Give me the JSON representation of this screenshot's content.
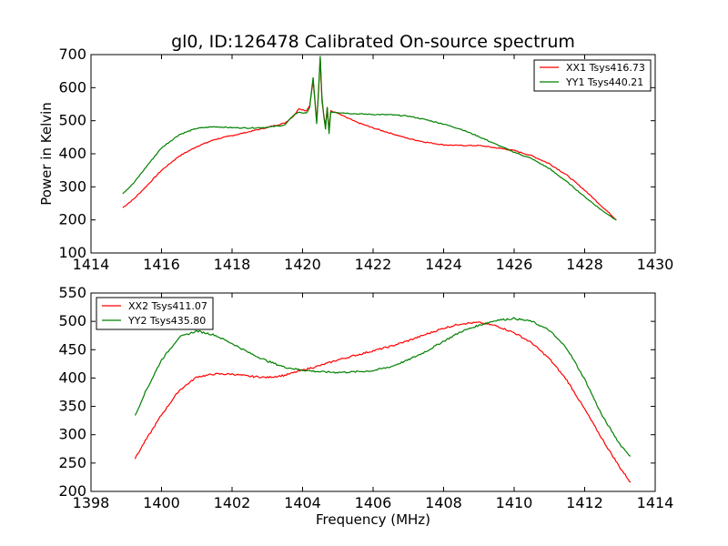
{
  "chart_data": [
    {
      "type": "line",
      "title": "gl0, ID:126478 Calibrated On-source spectrum",
      "xlabel": "",
      "ylabel": "Power in Kelvin",
      "xlim": [
        1414,
        1430
      ],
      "ylim": [
        100,
        700
      ],
      "xticks": [
        "1414",
        "1416",
        "1418",
        "1420",
        "1422",
        "1424",
        "1426",
        "1428",
        "1430"
      ],
      "yticks": [
        "100",
        "200",
        "300",
        "400",
        "500",
        "600",
        "700"
      ],
      "grid": false,
      "legend_position": "top-right",
      "series": [
        {
          "name": "XX1 Tsys416.73",
          "color": "#ff0000",
          "x": [
            1414.9,
            1415.2,
            1415.6,
            1416.0,
            1416.5,
            1417.0,
            1417.5,
            1418.0,
            1418.5,
            1419.0,
            1419.5,
            1419.75,
            1419.9,
            1420.1,
            1420.2,
            1420.3,
            1420.35,
            1420.4,
            1420.45,
            1420.5,
            1420.55,
            1420.6,
            1420.65,
            1420.7,
            1420.75,
            1420.8,
            1421.0,
            1421.5,
            1422.0,
            1422.5,
            1423.0,
            1423.5,
            1424.0,
            1424.5,
            1425.0,
            1425.5,
            1426.0,
            1426.5,
            1427.0,
            1427.5,
            1428.0,
            1428.5,
            1428.9
          ],
          "values": [
            237,
            262,
            305,
            350,
            393,
            422,
            443,
            455,
            467,
            480,
            493,
            515,
            537,
            530,
            545,
            620,
            560,
            500,
            580,
            690,
            560,
            520,
            485,
            540,
            470,
            530,
            522,
            497,
            478,
            462,
            446,
            435,
            427,
            425,
            425,
            418,
            410,
            394,
            370,
            335,
            290,
            240,
            200
          ]
        },
        {
          "name": "YY1 Tsys440.21",
          "color": "#008000",
          "x": [
            1414.9,
            1415.2,
            1415.6,
            1416.0,
            1416.5,
            1417.0,
            1417.5,
            1418.0,
            1418.5,
            1419.0,
            1419.5,
            1419.75,
            1419.9,
            1420.1,
            1420.2,
            1420.3,
            1420.35,
            1420.4,
            1420.45,
            1420.5,
            1420.55,
            1420.6,
            1420.65,
            1420.7,
            1420.75,
            1420.8,
            1421.0,
            1421.5,
            1422.0,
            1422.5,
            1423.0,
            1423.5,
            1424.0,
            1424.5,
            1425.0,
            1425.5,
            1426.0,
            1426.5,
            1427.0,
            1427.5,
            1428.0,
            1428.5,
            1428.9
          ],
          "values": [
            280,
            310,
            365,
            418,
            458,
            477,
            482,
            479,
            478,
            480,
            487,
            518,
            526,
            522,
            540,
            630,
            560,
            490,
            585,
            695,
            570,
            515,
            475,
            540,
            460,
            527,
            525,
            521,
            519,
            518,
            514,
            503,
            490,
            474,
            452,
            428,
            405,
            385,
            355,
            315,
            270,
            228,
            200
          ]
        }
      ]
    },
    {
      "type": "line",
      "title": "",
      "xlabel": "Frequency (MHz)",
      "ylabel": "",
      "xlim": [
        1398,
        1414
      ],
      "ylim": [
        200,
        550
      ],
      "xticks": [
        "1398",
        "1400",
        "1402",
        "1404",
        "1406",
        "1408",
        "1410",
        "1412",
        "1414"
      ],
      "yticks": [
        "200",
        "250",
        "300",
        "350",
        "400",
        "450",
        "500",
        "550"
      ],
      "grid": false,
      "legend_position": "top-left",
      "series": [
        {
          "name": "XX2 Tsys411.07",
          "color": "#ff0000",
          "x": [
            1399.25,
            1399.5,
            1400.0,
            1400.5,
            1401.0,
            1401.5,
            1402.0,
            1402.5,
            1403.0,
            1403.5,
            1404.0,
            1404.5,
            1405.0,
            1405.5,
            1406.0,
            1406.5,
            1407.0,
            1407.5,
            1408.0,
            1408.5,
            1409.0,
            1409.5,
            1410.0,
            1410.5,
            1411.0,
            1411.5,
            1412.0,
            1412.5,
            1413.0,
            1413.3
          ],
          "values": [
            258,
            285,
            335,
            378,
            402,
            407,
            407,
            403,
            401,
            405,
            414,
            422,
            432,
            440,
            448,
            456,
            466,
            477,
            488,
            496,
            498,
            492,
            480,
            462,
            434,
            396,
            345,
            292,
            242,
            216
          ]
        },
        {
          "name": "YY2 Tsys435.80",
          "color": "#008000",
          "x": [
            1399.25,
            1399.5,
            1400.0,
            1400.5,
            1401.0,
            1401.5,
            1402.0,
            1402.5,
            1403.0,
            1403.5,
            1404.0,
            1404.5,
            1405.0,
            1405.5,
            1406.0,
            1406.5,
            1407.0,
            1407.5,
            1408.0,
            1408.5,
            1409.0,
            1409.5,
            1410.0,
            1410.5,
            1411.0,
            1411.5,
            1412.0,
            1412.5,
            1413.0,
            1413.3
          ],
          "values": [
            333,
            370,
            432,
            472,
            483,
            476,
            461,
            444,
            430,
            419,
            414,
            411,
            410,
            411,
            413,
            420,
            432,
            447,
            465,
            482,
            493,
            502,
            505,
            500,
            484,
            452,
            398,
            333,
            283,
            262
          ]
        }
      ]
    }
  ]
}
